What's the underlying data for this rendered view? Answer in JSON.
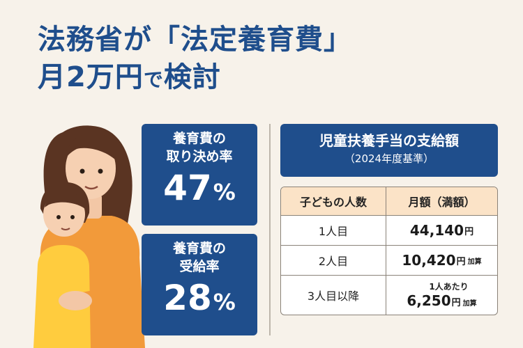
{
  "title": {
    "line1": "法務省が「法定養育費」",
    "line2_a": "月2万円",
    "line2_small": "で",
    "line2_b": "検討"
  },
  "stats": [
    {
      "label_line1": "養育費の",
      "label_line2": "取り決め率",
      "value": "47",
      "unit": "%"
    },
    {
      "label_line1": "養育費の",
      "label_line2": "受給率",
      "value": "28",
      "unit": "%"
    }
  ],
  "allowance": {
    "heading": "児童扶養手当の支給額",
    "subheading": "（2024年度基準）",
    "table": {
      "col1_header": "子どもの人数",
      "col2_header": "月額（満額）",
      "rows": [
        {
          "children": "1人目",
          "amount": "44,140",
          "unit": "円",
          "note": "",
          "prefix": ""
        },
        {
          "children": "2人目",
          "amount": "10,420",
          "unit": "円",
          "note": "加算",
          "prefix": ""
        },
        {
          "children": "3人目以降",
          "amount": "6,250",
          "unit": "円",
          "note": "加算",
          "prefix": "1人あたり"
        }
      ]
    }
  },
  "colors": {
    "accent": "#1f4e8c",
    "background": "#f7f2ea",
    "table_header": "#fbe3c7"
  },
  "illustration": {
    "subject": "mother-and-child"
  }
}
